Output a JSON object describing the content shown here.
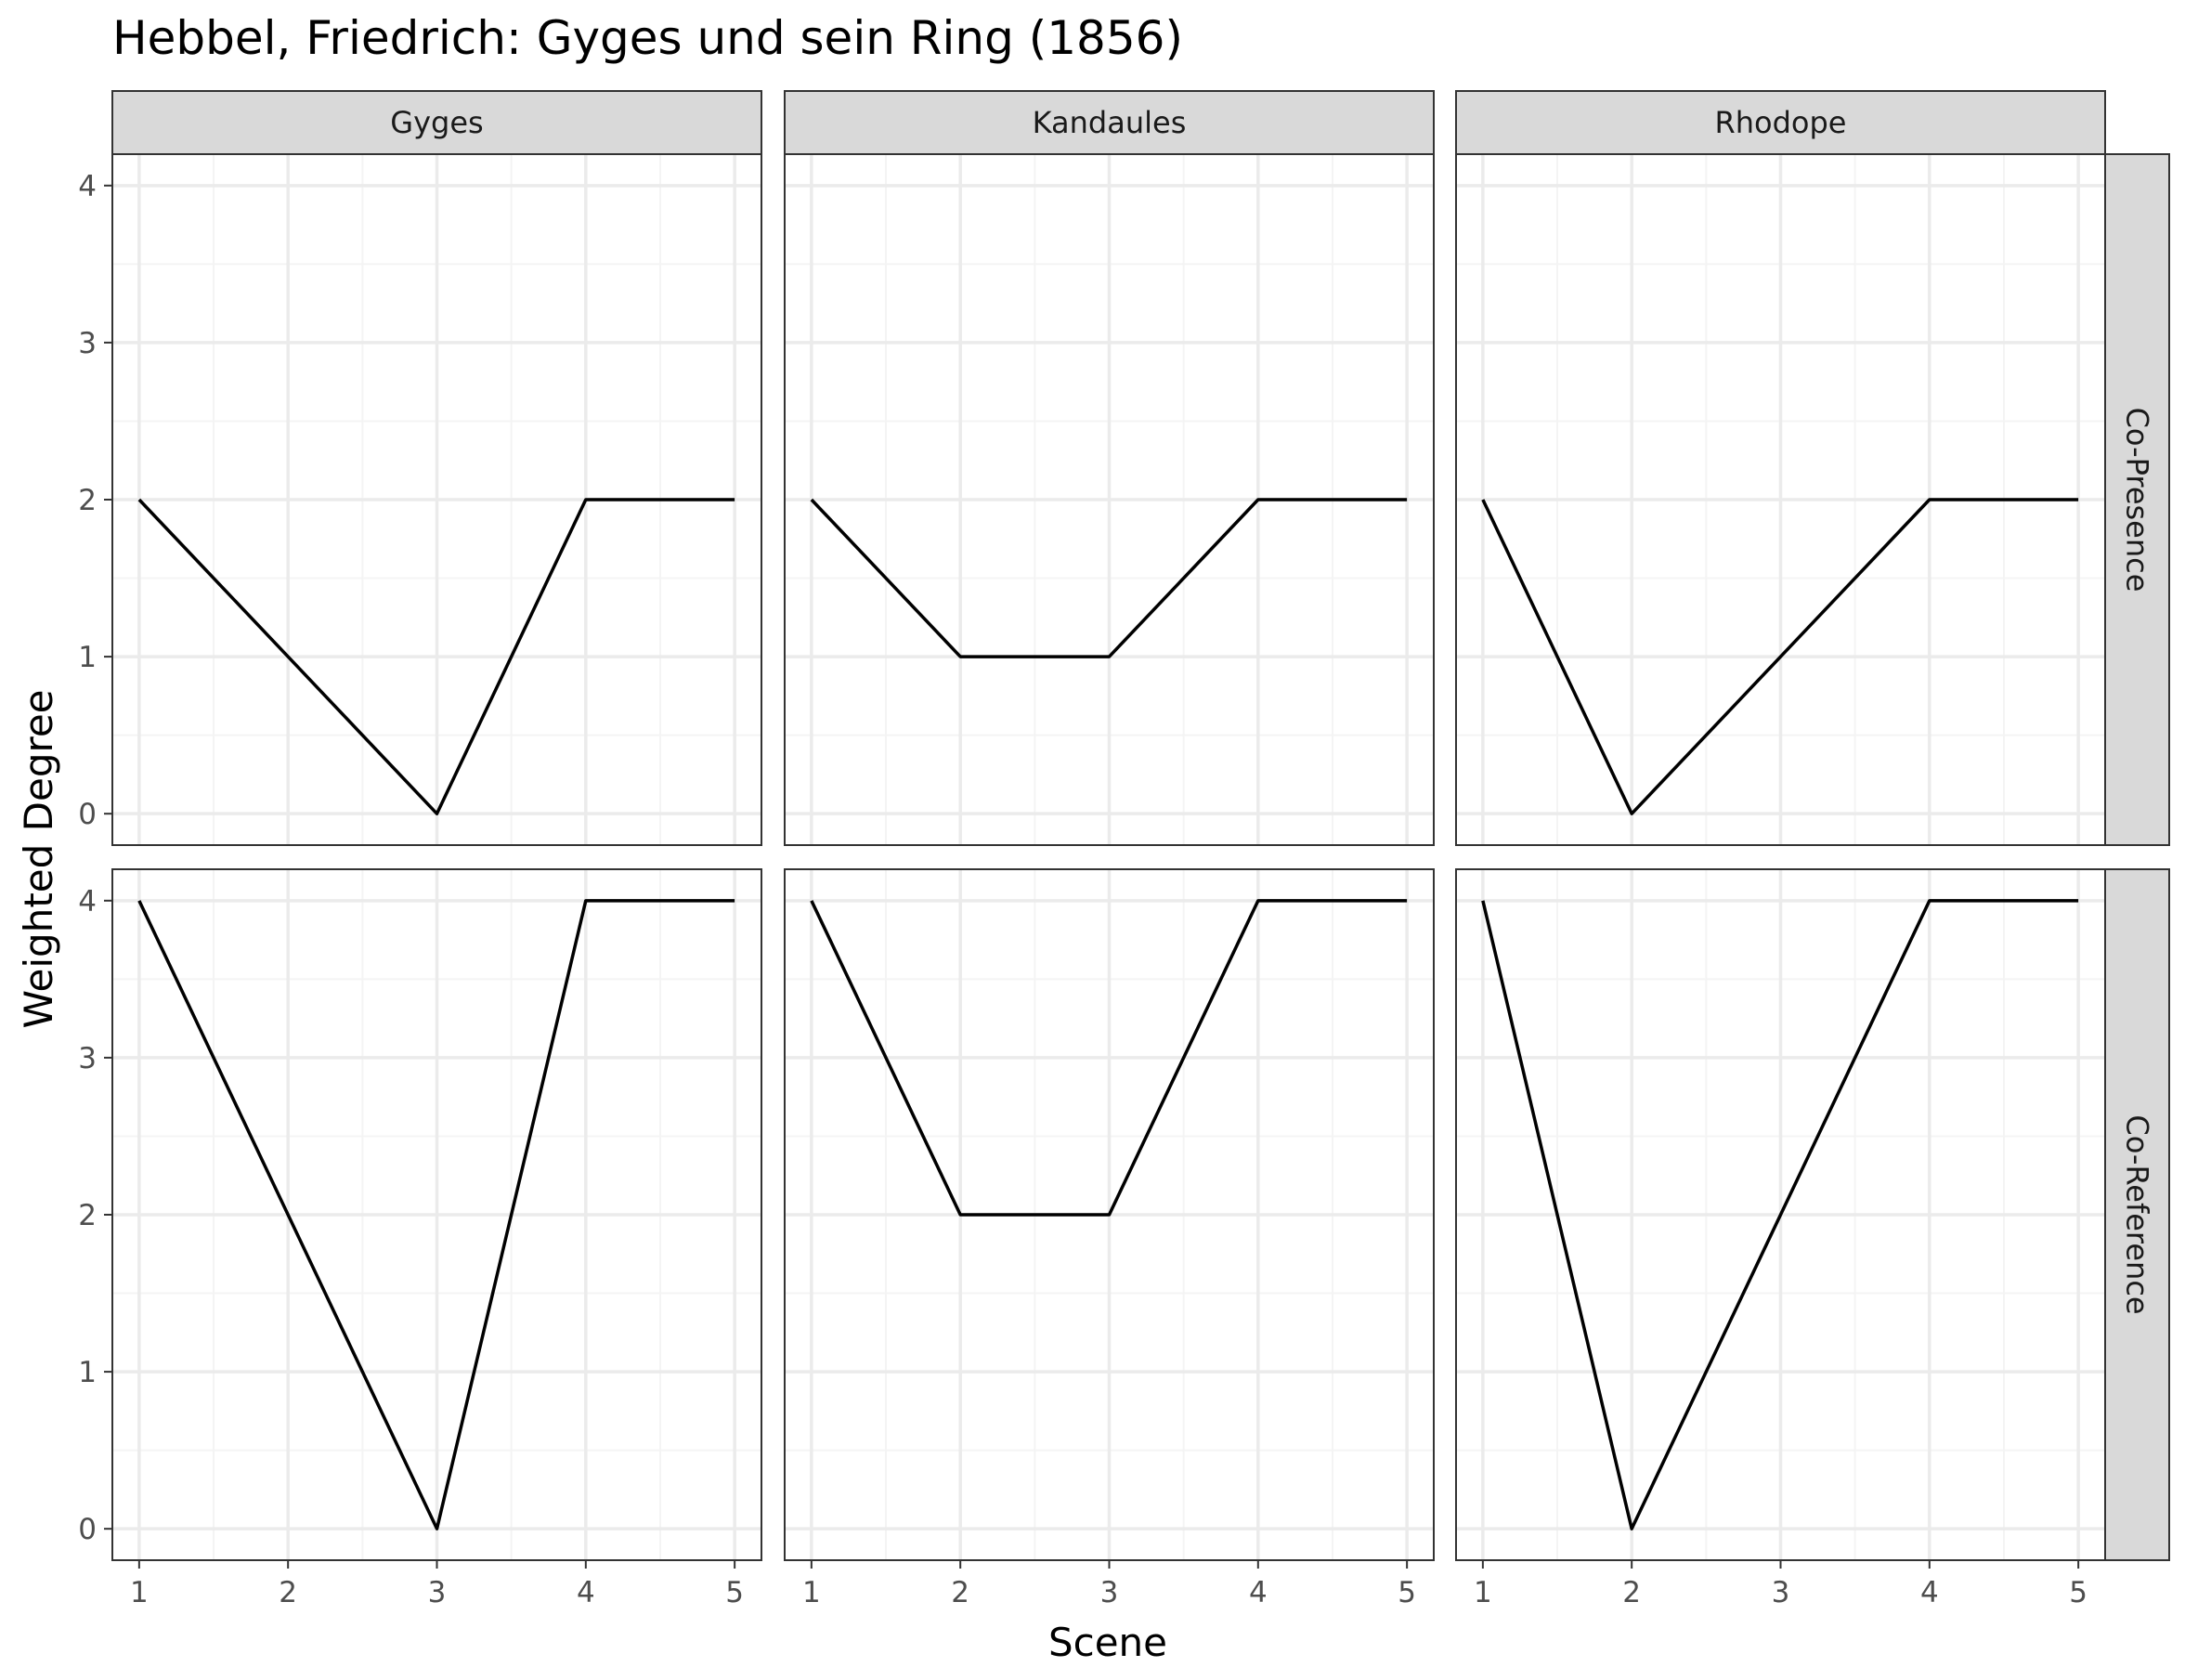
{
  "chart_data": {
    "type": "line",
    "title": "Hebbel, Friedrich: Gyges und sein Ring (1856)",
    "xlabel": "Scene",
    "ylabel": "Weighted Degree",
    "x": [
      1,
      2,
      3,
      4,
      5
    ],
    "x_ticks": [
      "1",
      "2",
      "3",
      "4",
      "5"
    ],
    "y_ticks": [
      "0",
      "1",
      "2",
      "3",
      "4"
    ],
    "xlim": [
      0.82,
      5.18
    ],
    "ylim": [
      -0.2,
      4.2
    ],
    "grid": true,
    "facet_columns": [
      "Gyges",
      "Kandaules",
      "Rhodope"
    ],
    "facet_rows": [
      "Co-Presence",
      "Co-Reference"
    ],
    "panels": [
      {
        "row": "Co-Presence",
        "column": "Gyges",
        "values": [
          2,
          1,
          0,
          2,
          2
        ]
      },
      {
        "row": "Co-Presence",
        "column": "Kandaules",
        "values": [
          2,
          1,
          1,
          2,
          2
        ]
      },
      {
        "row": "Co-Presence",
        "column": "Rhodope",
        "values": [
          2,
          0,
          1,
          2,
          2
        ]
      },
      {
        "row": "Co-Reference",
        "column": "Gyges",
        "values": [
          4,
          2,
          0,
          4,
          4
        ]
      },
      {
        "row": "Co-Reference",
        "column": "Kandaules",
        "values": [
          4,
          2,
          2,
          4,
          4
        ]
      },
      {
        "row": "Co-Reference",
        "column": "Rhodope",
        "values": [
          4,
          0,
          2,
          4,
          4
        ]
      }
    ],
    "colors": {
      "line": "#000000",
      "grid_major": "#ebebeb",
      "grid_minor": "#f4f4f4",
      "strip_fill": "#d9d9d9",
      "panel_border": "#333333"
    }
  }
}
